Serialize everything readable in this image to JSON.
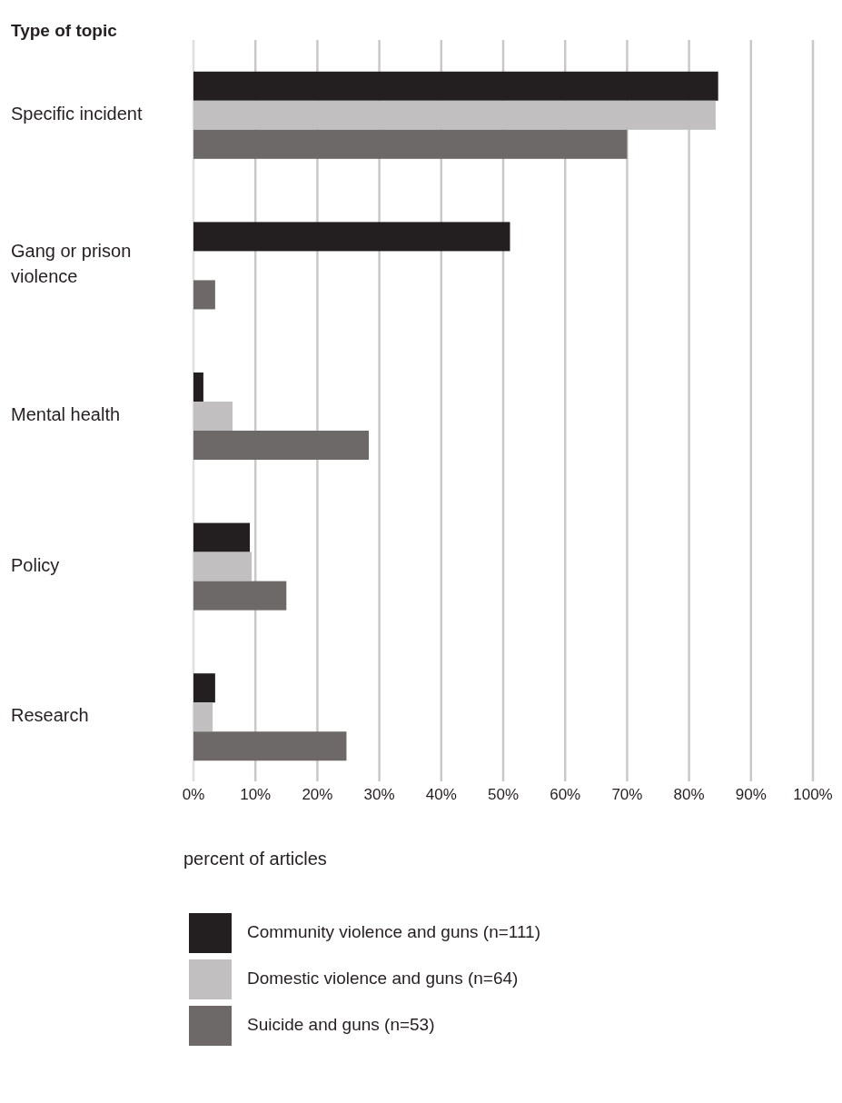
{
  "chart_data": {
    "type": "bar",
    "orientation": "horizontal",
    "title": "Type of topic",
    "xlabel": "percent of articles",
    "categories": [
      "Specific incident",
      "Gang or prison violence",
      "Mental health",
      "Policy",
      "Research"
    ],
    "series": [
      {
        "name": "Community violence and guns (n=111)",
        "color": "#231f20",
        "values": [
          84.7,
          51.1,
          1.6,
          9.1,
          3.5
        ]
      },
      {
        "name": "Domestic violence and guns (n=64)",
        "color": "#c1bfc0",
        "values": [
          84.3,
          0,
          6.3,
          9.4,
          3.1
        ]
      },
      {
        "name": "Suicide and guns (n=53)",
        "color": "#6d6968",
        "values": [
          70,
          3.5,
          28.3,
          15,
          24.7
        ]
      }
    ],
    "xlim": [
      0,
      100
    ],
    "xticks": [
      {
        "value": 0,
        "label": "0%"
      },
      {
        "value": 10,
        "label": "10%"
      },
      {
        "value": 20,
        "label": "20%"
      },
      {
        "value": 30,
        "label": "30%"
      },
      {
        "value": 40,
        "label": "40%"
      },
      {
        "value": 50,
        "label": "50%"
      },
      {
        "value": 60,
        "label": "60%"
      },
      {
        "value": 70,
        "label": "70%"
      },
      {
        "value": 80,
        "label": "80%"
      },
      {
        "value": 90,
        "label": "90%"
      },
      {
        "value": 100,
        "label": "100%"
      }
    ],
    "grid": "x",
    "legend": "bottom"
  }
}
